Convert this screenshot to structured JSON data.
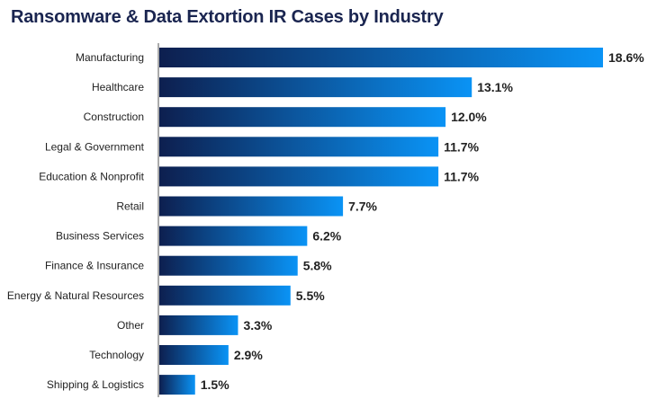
{
  "chart_data": {
    "type": "bar",
    "orientation": "horizontal",
    "title": "Ransomware & Data Extortion IR Cases by Industry",
    "xlabel": "",
    "ylabel": "",
    "categories": [
      "Manufacturing",
      "Healthcare",
      "Construction",
      "Legal & Government",
      "Education & Nonprofit",
      "Retail",
      "Business Services",
      "Finance & Insurance",
      "Energy & Natural Resources",
      "Other",
      "Technology",
      "Shipping & Logistics"
    ],
    "values": [
      18.6,
      13.1,
      12.0,
      11.7,
      11.7,
      7.7,
      6.2,
      5.8,
      5.5,
      3.3,
      2.9,
      1.5
    ],
    "value_labels": [
      "18.6%",
      "13.1%",
      "12.0%",
      "11.7%",
      "11.7%",
      "7.7%",
      "6.2%",
      "5.8%",
      "5.5%",
      "3.3%",
      "2.9%",
      "1.5%"
    ],
    "xlim": [
      0,
      18.6
    ],
    "grid": false,
    "colors": {
      "bar_start": "#0d1f4f",
      "bar_end": "#0a93f5",
      "axis": "#555555"
    }
  }
}
